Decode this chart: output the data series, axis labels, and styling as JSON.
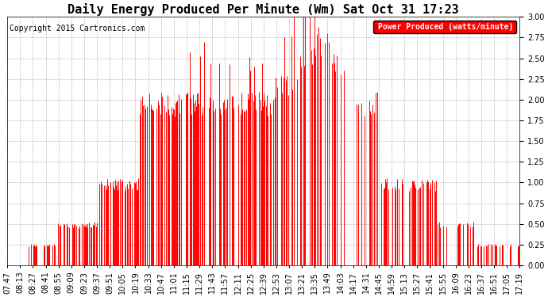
{
  "title": "Daily Energy Produced Per Minute (Wm) Sat Oct 31 17:23",
  "copyright": "Copyright 2015 Cartronics.com",
  "legend_label": "Power Produced (watts/minute)",
  "legend_color": "#ff0000",
  "legend_text_color": "#ffffff",
  "ylim": [
    0.0,
    3.0
  ],
  "yticks": [
    0.0,
    0.25,
    0.5,
    0.75,
    1.0,
    1.25,
    1.5,
    1.75,
    2.0,
    2.25,
    2.5,
    2.75,
    3.0
  ],
  "line_color": "#ff0000",
  "grid_color": "#bbbbbb",
  "background_color": "#ffffff",
  "title_fontsize": 11,
  "copyright_fontsize": 7,
  "tick_fontsize": 7,
  "xtick_labels": [
    "07:47",
    "08:13",
    "08:27",
    "08:41",
    "08:55",
    "09:09",
    "09:23",
    "09:37",
    "09:51",
    "10:05",
    "10:19",
    "10:33",
    "10:47",
    "11:01",
    "11:15",
    "11:29",
    "11:43",
    "11:57",
    "12:11",
    "12:25",
    "12:39",
    "12:53",
    "13:07",
    "13:21",
    "13:35",
    "13:49",
    "14:03",
    "14:17",
    "14:31",
    "14:45",
    "14:59",
    "15:13",
    "15:27",
    "15:41",
    "15:55",
    "16:09",
    "16:23",
    "16:37",
    "16:51",
    "17:05",
    "17:19"
  ]
}
